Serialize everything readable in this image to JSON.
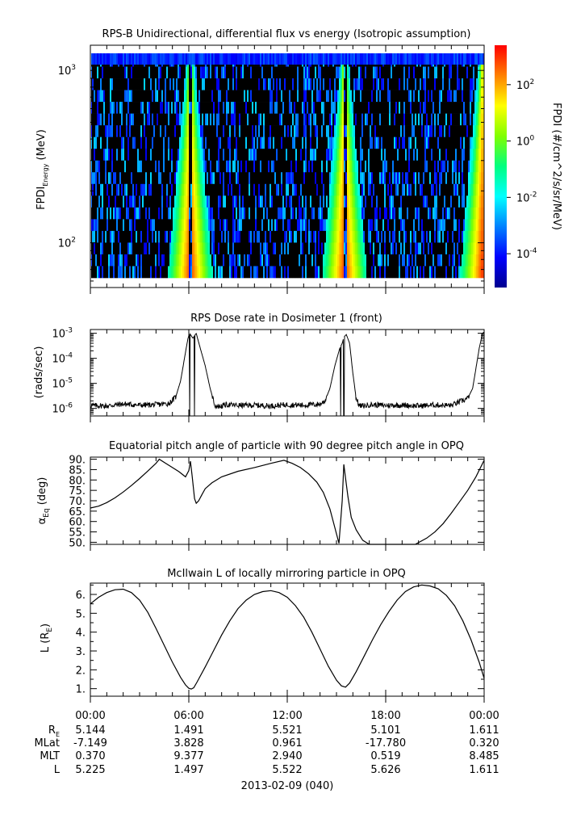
{
  "chart_data": [
    {
      "type": "heatmap",
      "title": "RPS-B  Unidirectional, differential flux vs energy (Isotropic assumption)",
      "ylabel": "FPDI",
      "ylabel_sub": "Energy",
      "ylabel_unit": "(MeV)",
      "yscale": "log",
      "ylim": [
        55,
        1400
      ],
      "y_ticks": [
        {
          "base": "10",
          "exp": "3",
          "value": 1000
        },
        {
          "base": "10",
          "exp": "2",
          "value": 100
        }
      ],
      "colorbar": {
        "label": "FPDI (#/cm^2/s/sr/MeV)",
        "scale": "log",
        "range_exp": [
          -5.2,
          3.4
        ],
        "ticks": [
          {
            "base": "10",
            "exp": "2",
            "value_exp": 2
          },
          {
            "base": "10",
            "exp": "0",
            "value_exp": 0
          },
          {
            "base": "10",
            "exp": "-2",
            "value_exp": -2
          },
          {
            "base": "10",
            "exp": "-4",
            "value_exp": -4
          }
        ],
        "colors": [
          "#00008f",
          "#0000ff",
          "#0080ff",
          "#00ffff",
          "#00ff80",
          "#80ff00",
          "#ffff00",
          "#ff8000",
          "#ff0000"
        ]
      },
      "energy_channels": 19,
      "passes": [
        {
          "center_hours": 6.1,
          "gap_hours": 0.2
        },
        {
          "center_hours": 15.5,
          "gap_hours": 0.2
        },
        {
          "center_hours": 23.9,
          "gap_hours": 0
        }
      ],
      "xlim_hours": [
        0,
        24
      ]
    },
    {
      "type": "line",
      "title": "RPS  Dose rate in Dosimeter 1 (front)",
      "ylabel": "(rads/sec)",
      "yscale": "log",
      "ylim_exp": [
        -6.3,
        -2.85
      ],
      "y_ticks": [
        {
          "base": "10",
          "exp": "-3",
          "value_exp": -3
        },
        {
          "base": "10",
          "exp": "-4",
          "value_exp": -4
        },
        {
          "base": "10",
          "exp": "-5",
          "value_exp": -5
        },
        {
          "base": "10",
          "exp": "-6",
          "value_exp": -6
        }
      ],
      "x": [
        0,
        1,
        2,
        3,
        4,
        4.8,
        5.2,
        5.5,
        5.8,
        5.95,
        6.05,
        6.25,
        6.45,
        6.7,
        7.0,
        7.3,
        7.6,
        7.9,
        8.3,
        9,
        10,
        11,
        12,
        13,
        14,
        14.3,
        14.6,
        14.9,
        15.2,
        15.35,
        15.45,
        15.6,
        15.8,
        16.0,
        16.2,
        16.4,
        16.7,
        17,
        18,
        19,
        20,
        21,
        22,
        23,
        23.3,
        23.5,
        23.7,
        23.9,
        24
      ],
      "values_log10": [
        -5.88,
        -5.9,
        -5.82,
        -5.87,
        -5.85,
        -5.8,
        -5.55,
        -4.9,
        -3.75,
        -3.2,
        -3.0,
        -3.2,
        -3.0,
        -3.6,
        -4.3,
        -5.2,
        -5.9,
        -5.92,
        -5.85,
        -5.88,
        -5.87,
        -5.9,
        -5.85,
        -5.87,
        -5.83,
        -5.7,
        -5.2,
        -4.3,
        -3.6,
        -3.4,
        -3.15,
        -3.05,
        -3.4,
        -4.6,
        -5.6,
        -5.9,
        -5.9,
        -5.85,
        -5.88,
        -5.87,
        -5.9,
        -5.86,
        -5.88,
        -5.6,
        -5.2,
        -4.4,
        -3.6,
        -3.0,
        -2.95
      ],
      "dropouts_hours": [
        6.05,
        6.35,
        15.25,
        15.45
      ]
    },
    {
      "type": "line",
      "title": "Equatorial pitch angle of particle with 90 degree pitch angle in OPQ",
      "ylabel": "α",
      "ylabel_sub": "Eq",
      "ylabel_unit": "(deg)",
      "ylim": [
        49,
        91
      ],
      "y_ticks": [
        "90.",
        "85.",
        "80.",
        "75.",
        "70.",
        "65.",
        "60.",
        "55.",
        "50."
      ],
      "x": [
        0,
        0.5,
        1,
        1.5,
        2,
        2.5,
        3,
        3.5,
        4,
        4.2,
        4.6,
        5.0,
        5.4,
        5.8,
        6.0,
        6.1,
        6.2,
        6.35,
        6.45,
        6.6,
        6.8,
        7.0,
        7.4,
        8,
        9,
        10,
        11,
        11.8,
        12.3,
        12.8,
        13.3,
        13.8,
        14.2,
        14.6,
        14.9,
        15.15,
        15.35,
        15.45,
        15.55,
        15.7,
        15.9,
        16.2,
        16.6,
        17,
        18,
        19,
        19.8,
        20.5,
        21,
        21.5,
        22,
        22.5,
        23,
        23.5,
        24
      ],
      "values": [
        66.5,
        67.4,
        69.1,
        71.4,
        74.2,
        77.3,
        80.7,
        84.3,
        88.0,
        90.0,
        88.0,
        86.0,
        84.0,
        81.5,
        84.5,
        89.0,
        82.0,
        71.0,
        68.8,
        70.0,
        73.0,
        75.8,
        78.6,
        81.5,
        84.2,
        86.0,
        88.0,
        89.5,
        88.0,
        86.0,
        83.0,
        79.0,
        74.0,
        66.0,
        57.0,
        49.5,
        70.0,
        87.5,
        81.0,
        72.0,
        62.0,
        56.0,
        51.0,
        49.0,
        49.0,
        49.0,
        49.0,
        52.0,
        55.0,
        59.0,
        64.0,
        69.5,
        75.0,
        81.5,
        89.5
      ]
    },
    {
      "type": "line",
      "title": "McIlwain L of locally mirroring particle in OPQ",
      "ylabel": "L (R",
      "ylabel_sub": "E",
      "ylabel_unit": ")",
      "ylim": [
        0.6,
        6.6
      ],
      "y_ticks": [
        "6.",
        "5.",
        "4.",
        "3.",
        "2.",
        "1."
      ],
      "x": [
        0,
        0.5,
        1,
        1.5,
        2,
        2.5,
        3,
        3.5,
        4,
        4.5,
        5,
        5.5,
        5.8,
        6.0,
        6.15,
        6.3,
        6.5,
        7,
        7.5,
        8,
        8.5,
        9,
        9.5,
        10,
        10.5,
        11,
        11.5,
        12,
        12.5,
        13,
        13.5,
        14,
        14.5,
        15,
        15.3,
        15.55,
        15.8,
        16.2,
        16.7,
        17.2,
        17.7,
        18.2,
        18.7,
        19.2,
        19.7,
        20.2,
        20.7,
        21.2,
        21.7,
        22.2,
        22.7,
        23.2,
        23.7,
        24
      ],
      "values": [
        5.5,
        5.85,
        6.1,
        6.25,
        6.28,
        6.1,
        5.7,
        5.05,
        4.2,
        3.3,
        2.4,
        1.6,
        1.2,
        1.02,
        0.98,
        1.05,
        1.35,
        2.15,
        3.0,
        3.85,
        4.6,
        5.25,
        5.7,
        6.0,
        6.15,
        6.2,
        6.1,
        5.85,
        5.4,
        4.8,
        4.0,
        3.1,
        2.2,
        1.45,
        1.15,
        1.08,
        1.3,
        1.9,
        2.75,
        3.6,
        4.4,
        5.1,
        5.7,
        6.15,
        6.4,
        6.5,
        6.45,
        6.3,
        5.95,
        5.4,
        4.6,
        3.6,
        2.4,
        1.55
      ]
    }
  ],
  "x_axis": {
    "tick_labels": [
      "00:00",
      "06:00",
      "12:00",
      "18:00",
      "00:00"
    ],
    "date_label": "2013-02-09 (040)"
  },
  "ephemeris": {
    "row_labels": [
      {
        "main": "R",
        "sub": "E"
      },
      {
        "main": "MLat",
        "sub": ""
      },
      {
        "main": "MLT",
        "sub": ""
      },
      {
        "main": "L",
        "sub": ""
      }
    ],
    "rows": [
      [
        "5.144",
        "1.491",
        "5.521",
        "5.101",
        "1.611"
      ],
      [
        "-7.149",
        "3.828",
        "0.961",
        "-17.780",
        "0.320"
      ],
      [
        "0.370",
        "9.377",
        "2.940",
        "0.519",
        "8.485"
      ],
      [
        "5.225",
        "1.497",
        "5.522",
        "5.626",
        "1.611"
      ]
    ]
  }
}
